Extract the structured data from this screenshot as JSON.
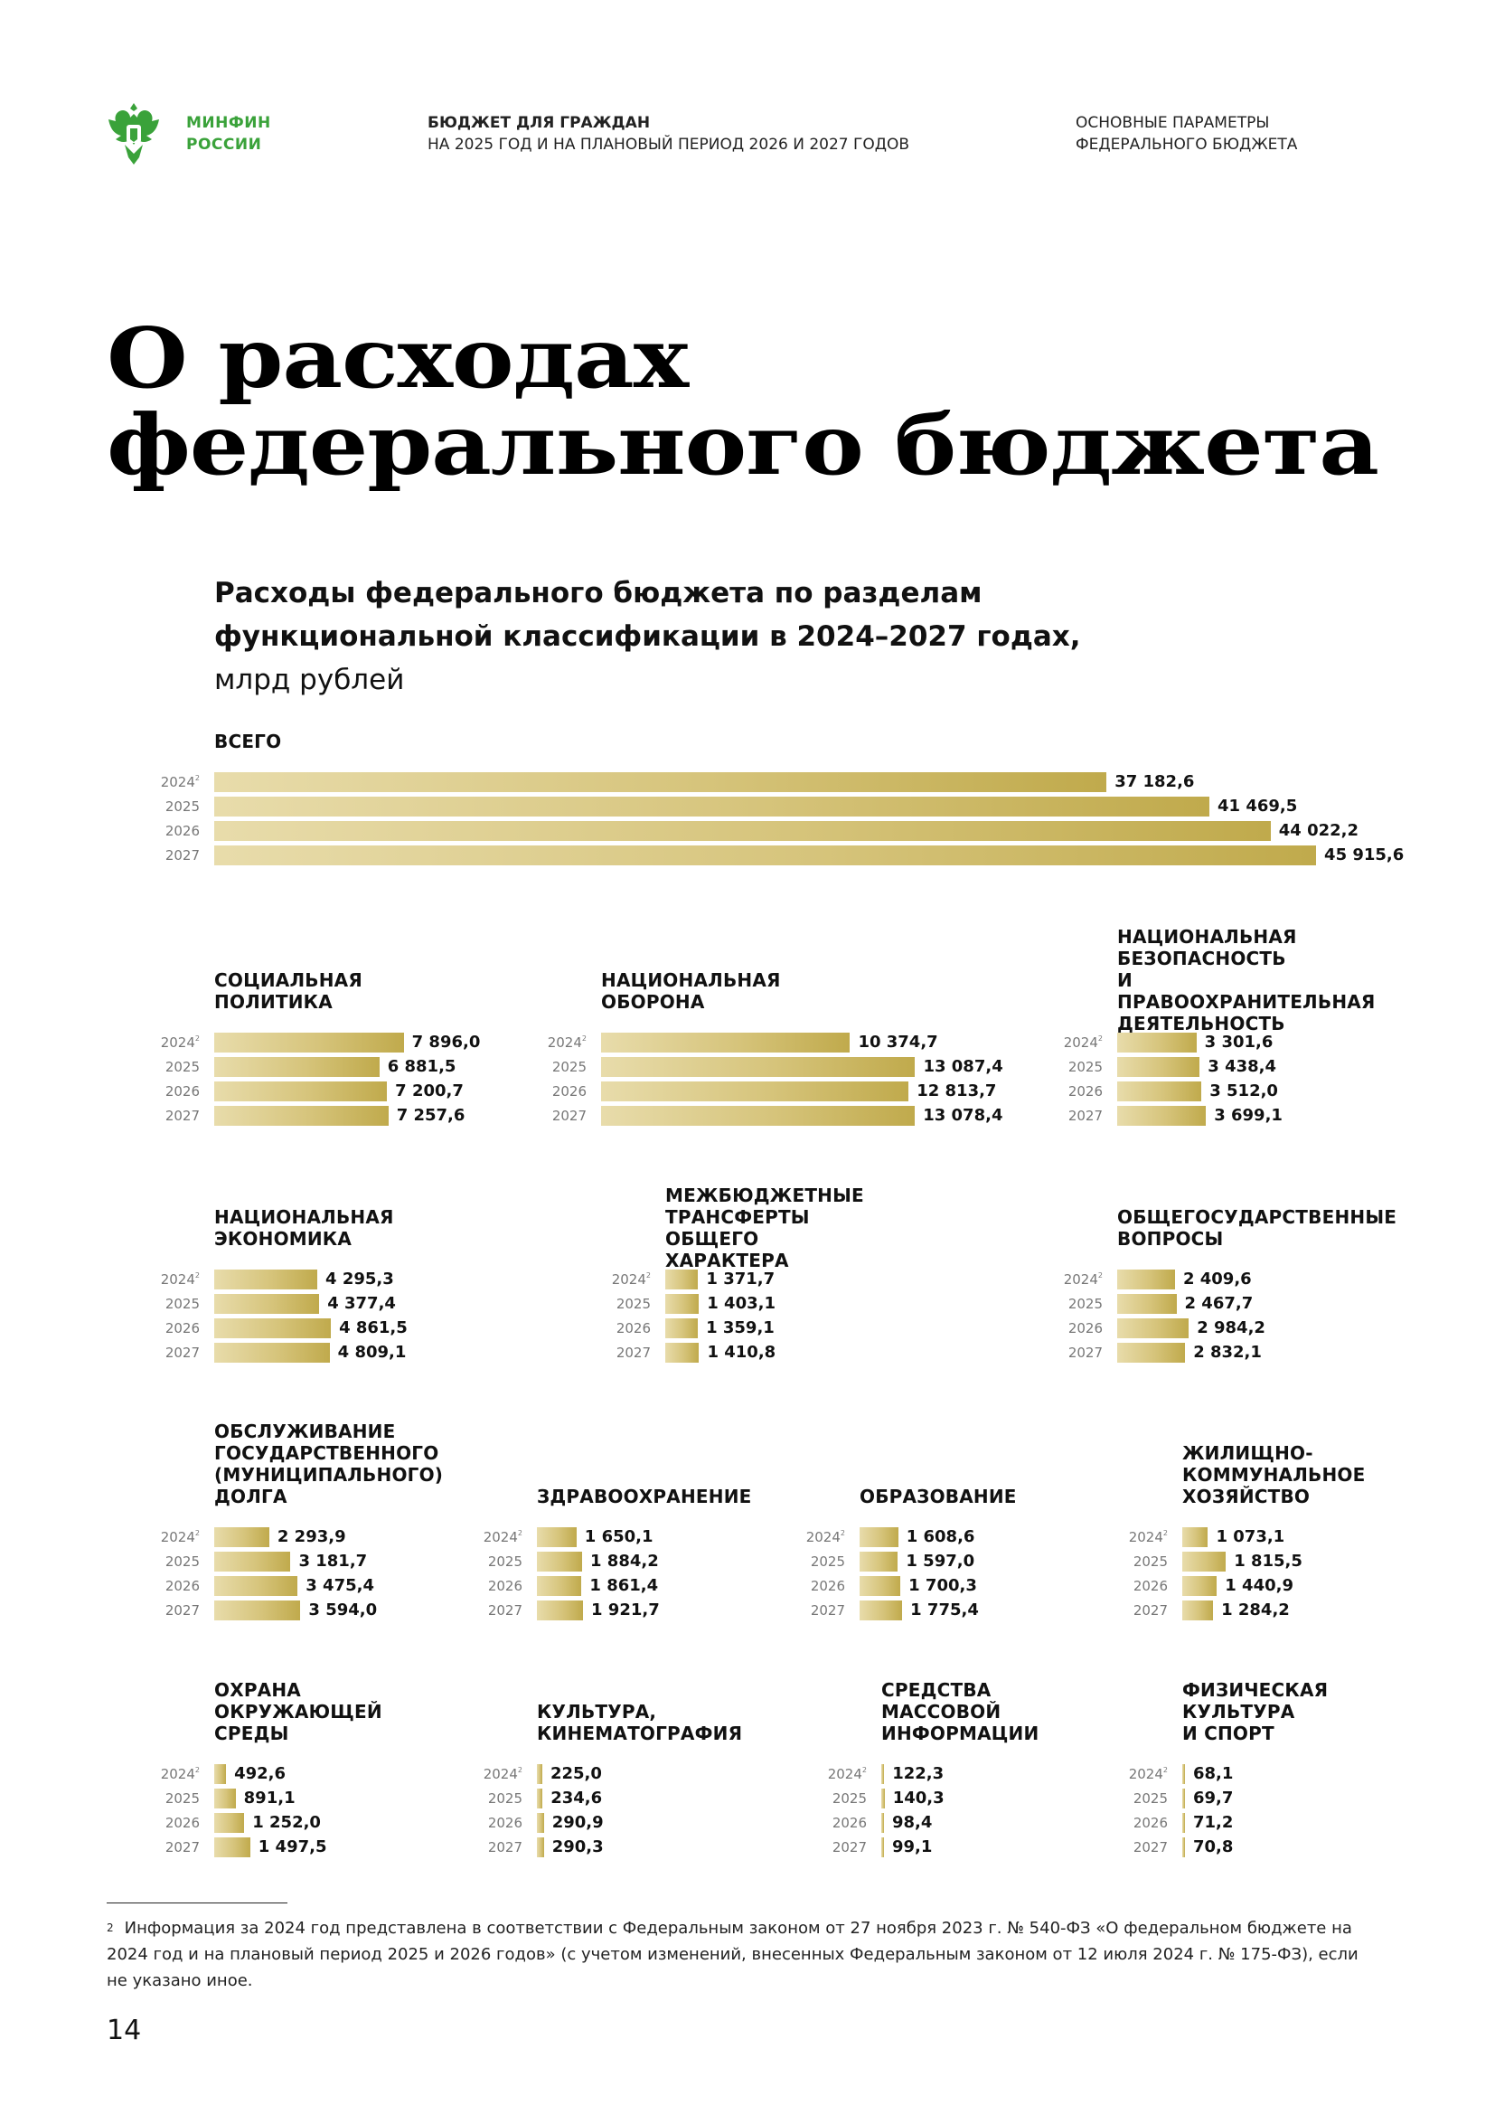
{
  "header": {
    "logo_line1": "МИНФИН",
    "logo_line2": "РОССИИ",
    "center_line1": "БЮДЖЕТ ДЛЯ ГРАЖДАН",
    "center_line2": "НА 2025 ГОД И НА ПЛАНОВЫЙ ПЕРИОД 2026 И 2027 ГОДОВ",
    "right_line1": "ОСНОВНЫЕ ПАРАМЕТРЫ",
    "right_line2": "ФЕДЕРАЛЬНОГО БЮДЖЕТА",
    "colors": {
      "brand_green": "#3aa23a",
      "bar_gold": "#c9b458"
    }
  },
  "title": {
    "line1": "О расходах",
    "line2": "федерального бюджета"
  },
  "subtitle": {
    "line1": "Расходы федерального бюджета по разделам",
    "line2": "функциональной классификации в 2024–2027 годах,",
    "line3": "млрд рублей"
  },
  "years": [
    "2024",
    "2025",
    "2026",
    "2027"
  ],
  "footnote_mark": "2",
  "chart_data": {
    "type": "bar",
    "orientation": "horizontal",
    "unit": "млрд рублей",
    "categories": [
      "2024",
      "2025",
      "2026",
      "2027"
    ],
    "panels": [
      {
        "title": "ВСЕГО",
        "values": [
          37182.6,
          41469.5,
          44022.2,
          45915.6
        ],
        "labels": [
          "37 182,6",
          "41 469,5",
          "44 022,2",
          "45 915,6"
        ]
      },
      {
        "title": "СОЦИАЛЬНАЯ ПОЛИТИКА",
        "values": [
          7896.0,
          6881.5,
          7200.7,
          7257.6
        ],
        "labels": [
          "7 896,0",
          "6 881,5",
          "7 200,7",
          "7 257,6"
        ]
      },
      {
        "title": "НАЦИОНАЛЬНАЯ ОБОРОНА",
        "values": [
          10374.7,
          13087.4,
          12813.7,
          13078.4
        ],
        "labels": [
          "10 374,7",
          "13 087,4",
          "12 813,7",
          "13 078,4"
        ]
      },
      {
        "title": "НАЦИОНАЛЬНАЯ БЕЗОПАСНОСТЬ И ПРАВООХРАНИТЕЛЬНАЯ ДЕЯТЕЛЬНОСТЬ",
        "values": [
          3301.6,
          3438.4,
          3512.0,
          3699.1
        ],
        "labels": [
          "3 301,6",
          "3 438,4",
          "3 512,0",
          "3 699,1"
        ]
      },
      {
        "title": "НАЦИОНАЛЬНАЯ ЭКОНОМИКА",
        "values": [
          4295.3,
          4377.4,
          4861.5,
          4809.1
        ],
        "labels": [
          "4 295,3",
          "4 377,4",
          "4 861,5",
          "4 809,1"
        ]
      },
      {
        "title": "МЕЖБЮДЖЕТНЫЕ ТРАНСФЕРТЫ ОБЩЕГО ХАРАКТЕРА",
        "values": [
          1371.7,
          1403.1,
          1359.1,
          1410.8
        ],
        "labels": [
          "1 371,7",
          "1 403,1",
          "1 359,1",
          "1 410,8"
        ]
      },
      {
        "title": "ОБЩЕГОСУДАРСТВЕННЫЕ ВОПРОСЫ",
        "values": [
          2409.6,
          2467.7,
          2984.2,
          2832.1
        ],
        "labels": [
          "2 409,6",
          "2 467,7",
          "2 984,2",
          "2 832,1"
        ]
      },
      {
        "title": "ОБСЛУЖИВАНИЕ ГОСУДАРСТВЕННОГО (МУНИЦИПАЛЬНОГО) ДОЛГА",
        "values": [
          2293.9,
          3181.7,
          3475.4,
          3594.0
        ],
        "labels": [
          "2 293,9",
          "3 181,7",
          "3 475,4",
          "3 594,0"
        ]
      },
      {
        "title": "ЗДРАВООХРАНЕНИЕ",
        "values": [
          1650.1,
          1884.2,
          1861.4,
          1921.7
        ],
        "labels": [
          "1 650,1",
          "1 884,2",
          "1 861,4",
          "1 921,7"
        ]
      },
      {
        "title": "ОБРАЗОВАНИЕ",
        "values": [
          1608.6,
          1597.0,
          1700.3,
          1775.4
        ],
        "labels": [
          "1 608,6",
          "1 597,0",
          "1 700,3",
          "1 775,4"
        ]
      },
      {
        "title": "ЖИЛИЩНО-КОММУНАЛЬНОЕ ХОЗЯЙСТВО",
        "values": [
          1073.1,
          1815.5,
          1440.9,
          1284.2
        ],
        "labels": [
          "1 073,1",
          "1 815,5",
          "1 440,9",
          "1 284,2"
        ]
      },
      {
        "title": "ОХРАНА ОКРУЖАЮЩЕЙ СРЕДЫ",
        "values": [
          492.6,
          891.1,
          1252.0,
          1497.5
        ],
        "labels": [
          "492,6",
          "891,1",
          "1 252,0",
          "1 497,5"
        ]
      },
      {
        "title": "КУЛЬТУРА, КИНЕМАТОГРАФИЯ",
        "values": [
          225.0,
          234.6,
          290.9,
          290.3
        ],
        "labels": [
          "225,0",
          "234,6",
          "290,9",
          "290,3"
        ]
      },
      {
        "title": "СРЕДСТВА МАССОВОЙ ИНФОРМАЦИИ",
        "values": [
          122.3,
          140.3,
          98.4,
          99.1
        ],
        "labels": [
          "122,3",
          "140,3",
          "98,4",
          "99,1"
        ]
      },
      {
        "title": "ФИЗИЧЕСКАЯ КУЛЬТУРА И СПОРТ",
        "values": [
          68.1,
          69.7,
          71.2,
          70.8
        ],
        "labels": [
          "68,1",
          "69,7",
          "71,2",
          "70,8"
        ]
      }
    ]
  },
  "footnote": {
    "mark": "2",
    "text": "Информация за 2024 год представлена в соответствии с Федеральным законом от 27 ноября 2023 г. № 540-ФЗ «О федеральном бюджете на 2024 год и на плановый период 2025 и 2026 годов» (с учетом изменений, внесенных Федеральным законом от 12 июля 2024 г. № 175-ФЗ), если не указано иное."
  },
  "page_number": "14"
}
